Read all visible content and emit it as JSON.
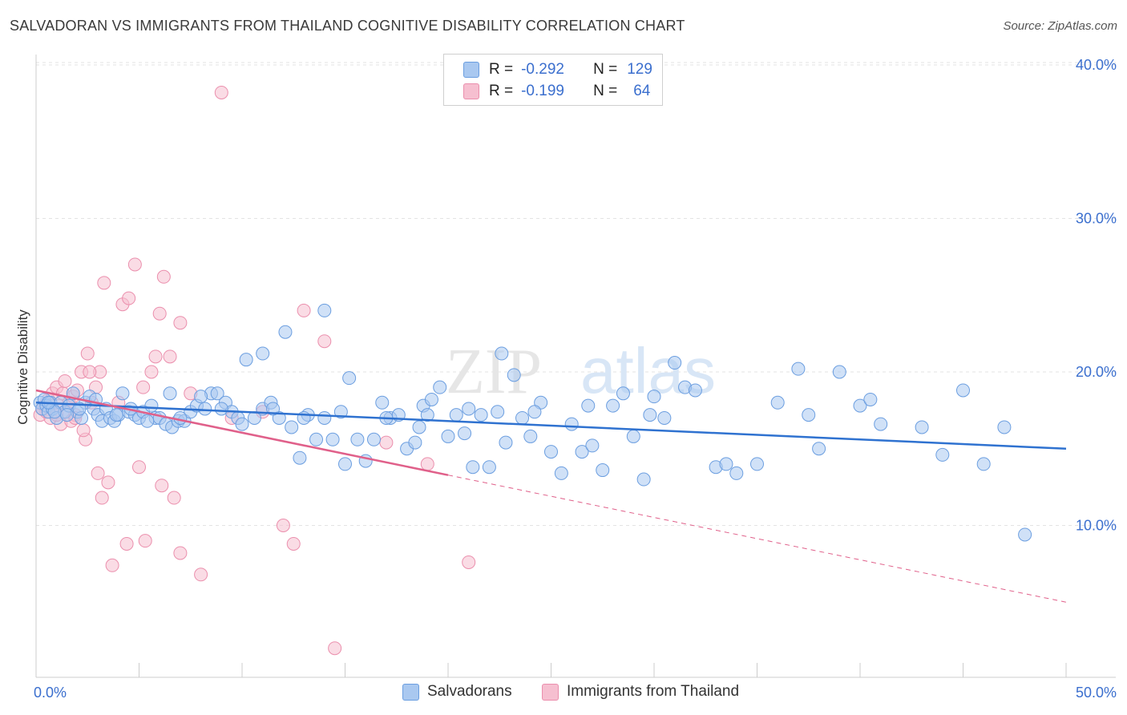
{
  "header": {
    "title": "SALVADORAN VS IMMIGRANTS FROM THAILAND COGNITIVE DISABILITY CORRELATION CHART",
    "source": "Source: ZipAtlas.com"
  },
  "legend": {
    "rows": [
      {
        "r_label": "R =",
        "r_value": "-0.292",
        "n_label": "N =",
        "n_value": "129"
      },
      {
        "r_label": "R =",
        "r_value": "-0.199",
        "n_label": "N =",
        "n_value": "64"
      }
    ]
  },
  "watermark": {
    "part1": "ZIP",
    "part2": "atlas"
  },
  "colors": {
    "blue_fill": "#a9c8f0",
    "blue_stroke": "#6b9ee0",
    "blue_line": "#2f72d0",
    "pink_fill": "#f6bfd0",
    "pink_stroke": "#eb8fad",
    "pink_line": "#e0608a",
    "tick_label": "#3b6fce",
    "grid": "#e3e3e3"
  },
  "chart_data": {
    "type": "scatter",
    "title": "SALVADORAN VS IMMIGRANTS FROM THAILAND COGNITIVE DISABILITY CORRELATION CHART",
    "xlabel": "",
    "ylabel": "Cognitive Disability",
    "xlim": [
      0,
      50
    ],
    "ylim": [
      0,
      40
    ],
    "x_tick_labels": [
      "0.0%",
      "50.0%"
    ],
    "y_tick_labels": [
      "10.0%",
      "20.0%",
      "30.0%",
      "40.0%"
    ],
    "y_ticks": [
      10,
      20,
      30,
      40
    ],
    "grid": true,
    "legend_position": "top-center",
    "series": [
      {
        "name": "Salvadorans",
        "r": -0.292,
        "n": 129,
        "trend": {
          "x0": 0,
          "y0": 18.0,
          "x1": 50,
          "y1": 15.0,
          "solid_to": 50
        },
        "points": [
          [
            0.2,
            18.0
          ],
          [
            0.3,
            17.6
          ],
          [
            0.4,
            18.2
          ],
          [
            0.5,
            17.8
          ],
          [
            0.6,
            17.4
          ],
          [
            0.7,
            18.0
          ],
          [
            0.8,
            17.6
          ],
          [
            1.0,
            17.0
          ],
          [
            1.2,
            18.0
          ],
          [
            1.4,
            17.4
          ],
          [
            1.6,
            17.8
          ],
          [
            1.8,
            18.6
          ],
          [
            2.0,
            17.4
          ],
          [
            2.2,
            17.0
          ],
          [
            2.4,
            18.0
          ],
          [
            2.6,
            18.4
          ],
          [
            2.8,
            17.6
          ],
          [
            3.0,
            17.2
          ],
          [
            3.2,
            16.8
          ],
          [
            3.4,
            17.6
          ],
          [
            3.6,
            17.0
          ],
          [
            3.8,
            16.8
          ],
          [
            4.0,
            17.2
          ],
          [
            4.2,
            18.6
          ],
          [
            4.5,
            17.4
          ],
          [
            4.8,
            17.2
          ],
          [
            5.0,
            17.0
          ],
          [
            5.2,
            17.4
          ],
          [
            5.6,
            17.8
          ],
          [
            5.8,
            17.0
          ],
          [
            6.0,
            17.0
          ],
          [
            6.3,
            16.6
          ],
          [
            6.6,
            16.4
          ],
          [
            6.9,
            16.8
          ],
          [
            7.2,
            16.8
          ],
          [
            7.5,
            17.4
          ],
          [
            7.8,
            17.8
          ],
          [
            8.2,
            17.6
          ],
          [
            8.5,
            18.6
          ],
          [
            8.8,
            18.6
          ],
          [
            9.2,
            18.0
          ],
          [
            9.5,
            17.4
          ],
          [
            9.8,
            17.0
          ],
          [
            10.2,
            20.8
          ],
          [
            10.6,
            17.0
          ],
          [
            11.0,
            17.6
          ],
          [
            11.4,
            18.0
          ],
          [
            11.8,
            17.0
          ],
          [
            12.1,
            22.6
          ],
          [
            12.4,
            16.4
          ],
          [
            12.8,
            14.4
          ],
          [
            13.2,
            17.2
          ],
          [
            13.6,
            15.6
          ],
          [
            14.0,
            17.0
          ],
          [
            14.4,
            15.6
          ],
          [
            14.8,
            17.4
          ],
          [
            15.2,
            19.6
          ],
          [
            15.6,
            15.6
          ],
          [
            16.0,
            14.2
          ],
          [
            16.4,
            15.6
          ],
          [
            16.8,
            18.0
          ],
          [
            17.2,
            17.0
          ],
          [
            17.6,
            17.2
          ],
          [
            18.0,
            15.0
          ],
          [
            18.4,
            15.4
          ],
          [
            18.8,
            17.8
          ],
          [
            19.2,
            18.2
          ],
          [
            19.6,
            19.0
          ],
          [
            20.0,
            15.8
          ],
          [
            20.4,
            17.2
          ],
          [
            20.8,
            16.0
          ],
          [
            21.2,
            13.8
          ],
          [
            21.6,
            17.2
          ],
          [
            22.0,
            13.8
          ],
          [
            22.4,
            17.4
          ],
          [
            22.8,
            15.4
          ],
          [
            23.2,
            19.8
          ],
          [
            23.6,
            17.0
          ],
          [
            24.0,
            15.8
          ],
          [
            24.5,
            18.0
          ],
          [
            25.0,
            14.8
          ],
          [
            25.5,
            13.4
          ],
          [
            26.0,
            16.6
          ],
          [
            26.5,
            14.8
          ],
          [
            27.0,
            15.2
          ],
          [
            27.5,
            13.6
          ],
          [
            28.0,
            17.8
          ],
          [
            28.5,
            18.6
          ],
          [
            29.0,
            15.8
          ],
          [
            29.5,
            13.0
          ],
          [
            30.0,
            18.4
          ],
          [
            30.5,
            17.0
          ],
          [
            31.0,
            20.6
          ],
          [
            31.5,
            19.0
          ],
          [
            32.0,
            18.8
          ],
          [
            33.0,
            13.8
          ],
          [
            33.5,
            14.0
          ],
          [
            34.0,
            13.4
          ],
          [
            35.0,
            14.0
          ],
          [
            36.0,
            18.0
          ],
          [
            37.0,
            20.2
          ],
          [
            37.5,
            17.2
          ],
          [
            38.0,
            15.0
          ],
          [
            39.0,
            20.0
          ],
          [
            40.0,
            17.8
          ],
          [
            40.5,
            18.2
          ],
          [
            41.0,
            16.6
          ],
          [
            43.0,
            16.4
          ],
          [
            44.0,
            14.6
          ],
          [
            45.0,
            18.8
          ],
          [
            46.0,
            14.0
          ],
          [
            47.0,
            16.4
          ],
          [
            48.0,
            9.4
          ],
          [
            15.0,
            14.0
          ],
          [
            9.0,
            17.6
          ],
          [
            6.5,
            18.6
          ],
          [
            3.9,
            17.2
          ],
          [
            2.1,
            17.6
          ],
          [
            1.5,
            17.2
          ],
          [
            0.9,
            17.4
          ],
          [
            0.6,
            18.0
          ],
          [
            8.0,
            18.4
          ],
          [
            11.5,
            17.6
          ],
          [
            13.0,
            17.0
          ],
          [
            17.0,
            17.0
          ],
          [
            19.0,
            17.2
          ],
          [
            21.0,
            17.6
          ],
          [
            24.2,
            17.4
          ],
          [
            26.8,
            17.8
          ],
          [
            29.8,
            17.2
          ],
          [
            14.0,
            24.0
          ],
          [
            11.0,
            21.2
          ],
          [
            22.6,
            21.2
          ],
          [
            2.9,
            18.2
          ],
          [
            4.6,
            17.6
          ],
          [
            7.0,
            17.0
          ],
          [
            5.4,
            16.8
          ],
          [
            10.0,
            16.6
          ],
          [
            18.6,
            16.4
          ]
        ]
      },
      {
        "name": "Immigrants from Thailand",
        "r": -0.199,
        "n": 64,
        "trend": {
          "x0": 0,
          "y0": 18.8,
          "x1": 50,
          "y1": 5.0,
          "solid_to": 20
        },
        "points": [
          [
            0.2,
            17.2
          ],
          [
            0.4,
            17.8
          ],
          [
            0.5,
            17.4
          ],
          [
            0.6,
            18.2
          ],
          [
            0.7,
            17.0
          ],
          [
            0.8,
            18.6
          ],
          [
            0.9,
            17.4
          ],
          [
            1.0,
            19.0
          ],
          [
            1.1,
            17.8
          ],
          [
            1.2,
            16.6
          ],
          [
            1.3,
            18.6
          ],
          [
            1.4,
            19.4
          ],
          [
            1.5,
            17.4
          ],
          [
            1.6,
            18.0
          ],
          [
            1.7,
            16.8
          ],
          [
            1.8,
            18.4
          ],
          [
            1.9,
            17.2
          ],
          [
            2.0,
            18.8
          ],
          [
            2.2,
            20.0
          ],
          [
            2.4,
            15.6
          ],
          [
            2.5,
            21.2
          ],
          [
            2.7,
            18.0
          ],
          [
            2.9,
            19.0
          ],
          [
            3.1,
            20.0
          ],
          [
            3.3,
            25.8
          ],
          [
            3.5,
            12.8
          ],
          [
            3.7,
            7.4
          ],
          [
            4.0,
            18.0
          ],
          [
            4.2,
            24.4
          ],
          [
            4.5,
            24.8
          ],
          [
            4.8,
            27.0
          ],
          [
            5.0,
            13.8
          ],
          [
            5.3,
            9.0
          ],
          [
            5.6,
            20.0
          ],
          [
            6.0,
            23.8
          ],
          [
            6.2,
            26.2
          ],
          [
            6.5,
            21.0
          ],
          [
            6.7,
            11.8
          ],
          [
            7.0,
            8.2
          ],
          [
            7.5,
            18.6
          ],
          [
            8.0,
            6.8
          ],
          [
            9.0,
            38.2
          ],
          [
            9.5,
            17.0
          ],
          [
            11.0,
            17.4
          ],
          [
            12.0,
            10.0
          ],
          [
            13.0,
            24.0
          ],
          [
            14.0,
            22.0
          ],
          [
            12.5,
            8.8
          ],
          [
            14.5,
            2.0
          ],
          [
            17.0,
            15.4
          ],
          [
            19.0,
            14.0
          ],
          [
            21.0,
            7.6
          ],
          [
            3.0,
            13.4
          ],
          [
            4.4,
            8.8
          ],
          [
            6.1,
            12.6
          ],
          [
            5.2,
            19.0
          ],
          [
            2.3,
            16.2
          ],
          [
            1.0,
            17.2
          ],
          [
            0.3,
            17.6
          ],
          [
            2.6,
            20.0
          ],
          [
            3.2,
            11.8
          ],
          [
            7.0,
            23.2
          ],
          [
            5.8,
            21.0
          ],
          [
            1.9,
            17.0
          ]
        ]
      }
    ]
  },
  "bottom_legend": {
    "items": [
      {
        "label": "Salvadorans"
      },
      {
        "label": "Immigrants from Thailand"
      }
    ]
  }
}
